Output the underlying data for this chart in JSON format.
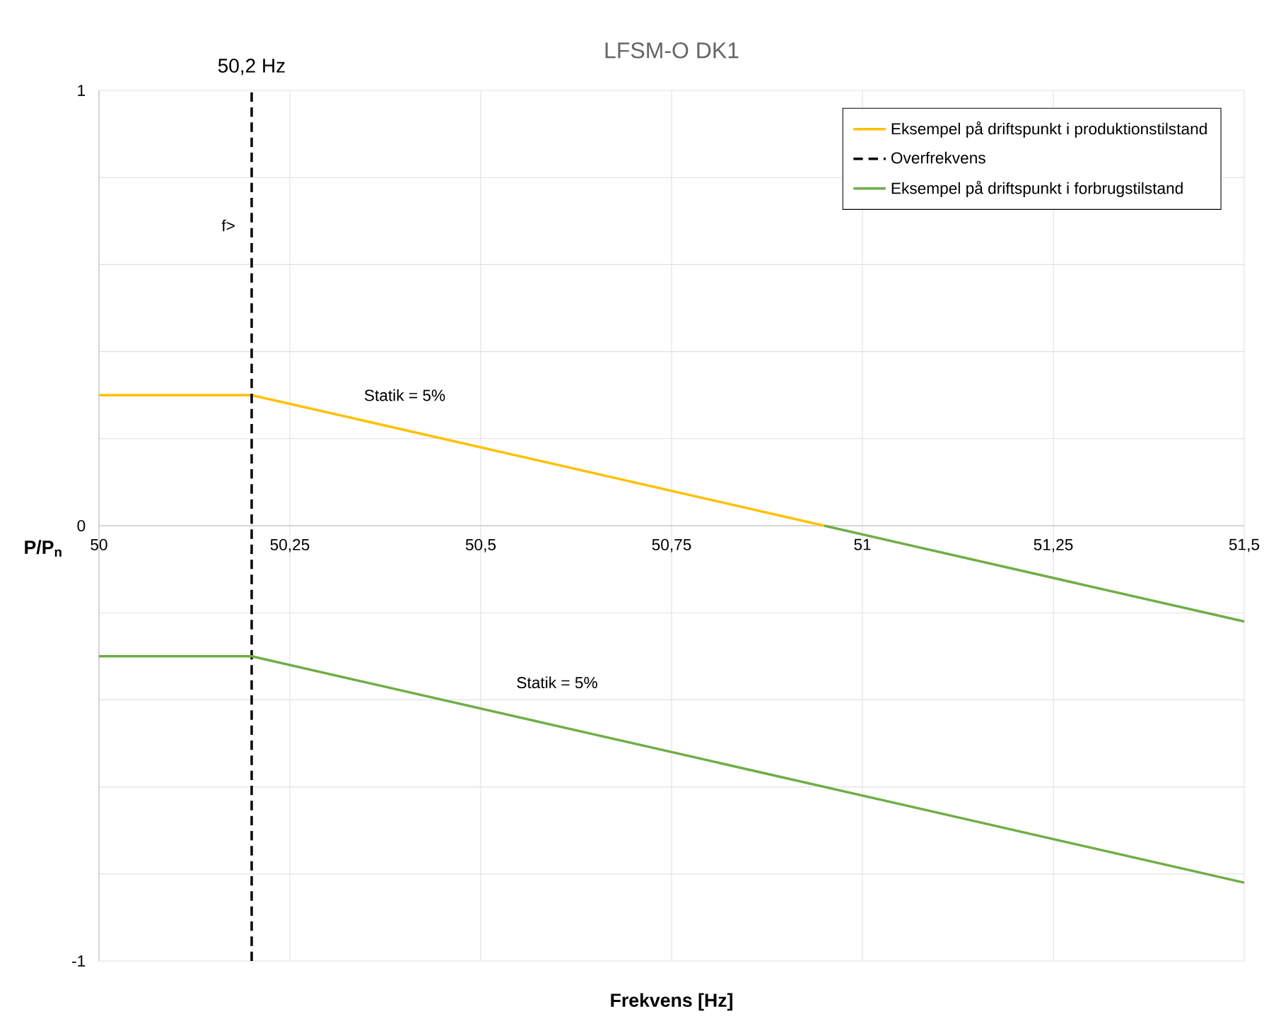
{
  "chart_data": {
    "type": "line",
    "title": "LFSM-O DK1",
    "xlabel": "Frekvens [Hz]",
    "ylabel": "P/P$_{n}$",
    "xlim": [
      50,
      51.5
    ],
    "ylim": [
      -1,
      1
    ],
    "xticks": [
      50,
      {
        "value": 50.25,
        "label": "50,25"
      },
      {
        "value": 50.5,
        "label": "50,5"
      },
      {
        "value": 50.75,
        "label": "50,75"
      },
      51,
      {
        "value": 51.25,
        "label": "51,25"
      },
      {
        "value": 51.5,
        "label": "51,5"
      }
    ],
    "yticks": [
      -1,
      {
        "value": -0.8,
        "label": null
      },
      {
        "value": -0.6,
        "label": null
      },
      {
        "value": -0.4,
        "label": null
      },
      {
        "value": -0.2,
        "label": null
      },
      0,
      {
        "value": 0.2,
        "label": null
      },
      {
        "value": 0.4,
        "label": null
      },
      {
        "value": 0.6,
        "label": null
      },
      {
        "value": 0.8,
        "label": null
      },
      1
    ],
    "grid": true,
    "legend": "top right",
    "series": [
      {
        "name": "Eksempel på driftspunkt i produktionstilstand",
        "color": "#ffc000",
        "line_style": "solid",
        "x": [
          50,
          50.2,
          50.95
        ],
        "values": [
          0.3,
          0.3,
          0
        ]
      },
      {
        "name": "Overfrekvens",
        "color": "#000000",
        "line_style": "dashed",
        "x": [
          50.2,
          50.2
        ],
        "values": [
          -1,
          1
        ]
      },
      {
        "name": "Eksempel på driftspunkt i forbrugstilstand",
        "color": "#70ad47",
        "line_style": "solid",
        "x": [
          50,
          50.2,
          51.5
        ],
        "values": [
          -0.3,
          -0.3,
          -0.82
        ]
      },
      {
        "color": "#70ad47",
        "line_style": "solid",
        "x": [
          50.95,
          51.5
        ],
        "values": [
          0,
          -0.22
        ]
      }
    ],
    "annotations": [
      "50,2 Hz",
      "f>",
      "Statik = 5%",
      "Statik = 5%"
    ]
  }
}
